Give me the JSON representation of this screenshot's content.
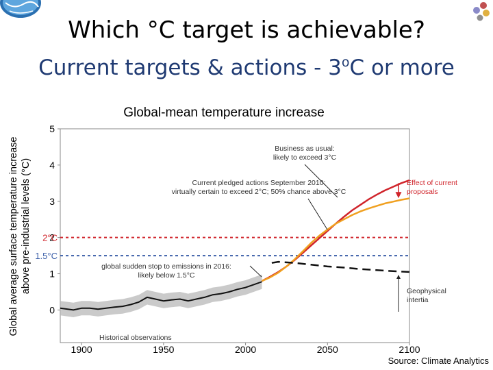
{
  "slide": {
    "title": "Which °C target is achievable?",
    "subtitle_prefix": "Current targets & actions - 3",
    "subtitle_sup": "o",
    "subtitle_suffix": "C or more",
    "source": "Source: Climate Analytics"
  },
  "chart_data": {
    "type": "line",
    "title": "Global-mean temperature increase",
    "ylabel": "Global average surface temperature increase above pre-industrial levels (°C)",
    "xlabel": "",
    "xlim": [
      1887,
      2100
    ],
    "ylim": [
      -0.9,
      5
    ],
    "x_ticks": [
      "1900",
      "1950",
      "2000",
      "2050",
      "2100"
    ],
    "y_ticks": [
      "0",
      "1",
      "2",
      "3",
      "4",
      "5"
    ],
    "thresholds": [
      {
        "label": "2°C",
        "value": 2.0,
        "color": "#d0242b"
      },
      {
        "label": "1.5°C",
        "value": 1.5,
        "color": "#3a5ea8"
      }
    ],
    "series": [
      {
        "name": "Historical observations",
        "color": "#111111",
        "style": "solid",
        "x": [
          1887,
          1895,
          1900,
          1905,
          1910,
          1915,
          1920,
          1925,
          1930,
          1935,
          1940,
          1945,
          1950,
          1955,
          1960,
          1965,
          1970,
          1975,
          1980,
          1985,
          1990,
          1995,
          2000,
          2005,
          2010
        ],
        "y": [
          0.05,
          0.0,
          0.05,
          0.05,
          0.02,
          0.05,
          0.08,
          0.1,
          0.15,
          0.22,
          0.35,
          0.3,
          0.25,
          0.28,
          0.3,
          0.25,
          0.3,
          0.35,
          0.42,
          0.45,
          0.5,
          0.57,
          0.62,
          0.7,
          0.78
        ]
      },
      {
        "name": "Business as usual: likely to exceed 3°C",
        "color": "#d0242b",
        "style": "solid",
        "x": [
          2010,
          2015,
          2020,
          2025,
          2030,
          2035,
          2040,
          2045,
          2050,
          2055,
          2060,
          2065,
          2070,
          2075,
          2080,
          2085,
          2090,
          2095,
          2100
        ],
        "y": [
          0.8,
          0.92,
          1.05,
          1.2,
          1.38,
          1.58,
          1.78,
          1.98,
          2.18,
          2.38,
          2.57,
          2.75,
          2.9,
          3.05,
          3.18,
          3.3,
          3.4,
          3.5,
          3.58
        ]
      },
      {
        "name": "Current pledged actions September 2010: virtually certain to exceed 2°C; 50% chance above 3°C",
        "color": "#f0a020",
        "style": "solid",
        "x": [
          2010,
          2015,
          2020,
          2025,
          2030,
          2035,
          2040,
          2045,
          2050,
          2055,
          2060,
          2065,
          2070,
          2075,
          2080,
          2085,
          2090,
          2095,
          2100
        ],
        "y": [
          0.8,
          0.9,
          1.03,
          1.2,
          1.4,
          1.62,
          1.85,
          2.05,
          2.22,
          2.38,
          2.5,
          2.62,
          2.72,
          2.8,
          2.87,
          2.94,
          2.99,
          3.04,
          3.08
        ]
      },
      {
        "name": "global sudden stop to emissions in 2016: likely below 1.5°C",
        "color": "#111111",
        "style": "dashed",
        "x": [
          2016,
          2020,
          2030,
          2040,
          2050,
          2060,
          2070,
          2080,
          2090,
          2100
        ],
        "y": [
          1.3,
          1.33,
          1.3,
          1.25,
          1.2,
          1.17,
          1.13,
          1.1,
          1.07,
          1.05
        ]
      }
    ],
    "annotations": [
      {
        "text_lines": [
          "Business as usual:",
          "likely to exceed 3°C"
        ],
        "color": "#333333"
      },
      {
        "text_lines": [
          "Current pledged actions September 2010:",
          "virtually certain to exceed 2°C; 50% chance above 3°C"
        ],
        "color": "#333333"
      },
      {
        "text_lines": [
          "Effect of current",
          "proposals"
        ],
        "color": "#d0242b"
      },
      {
        "text_lines": [
          "global sudden stop to emissions in 2016:",
          "likely below 1.5°C"
        ],
        "color": "#333333"
      },
      {
        "text_lines": [
          "Geophysical",
          "intertia"
        ],
        "color": "#333333"
      },
      {
        "text_lines": [
          "Historical observations"
        ],
        "color": "#333333"
      }
    ],
    "colors": {
      "business_as_usual": "#d0242b",
      "pledges": "#f0a020",
      "band": "#b8b8b8",
      "axis": "#888888"
    }
  }
}
